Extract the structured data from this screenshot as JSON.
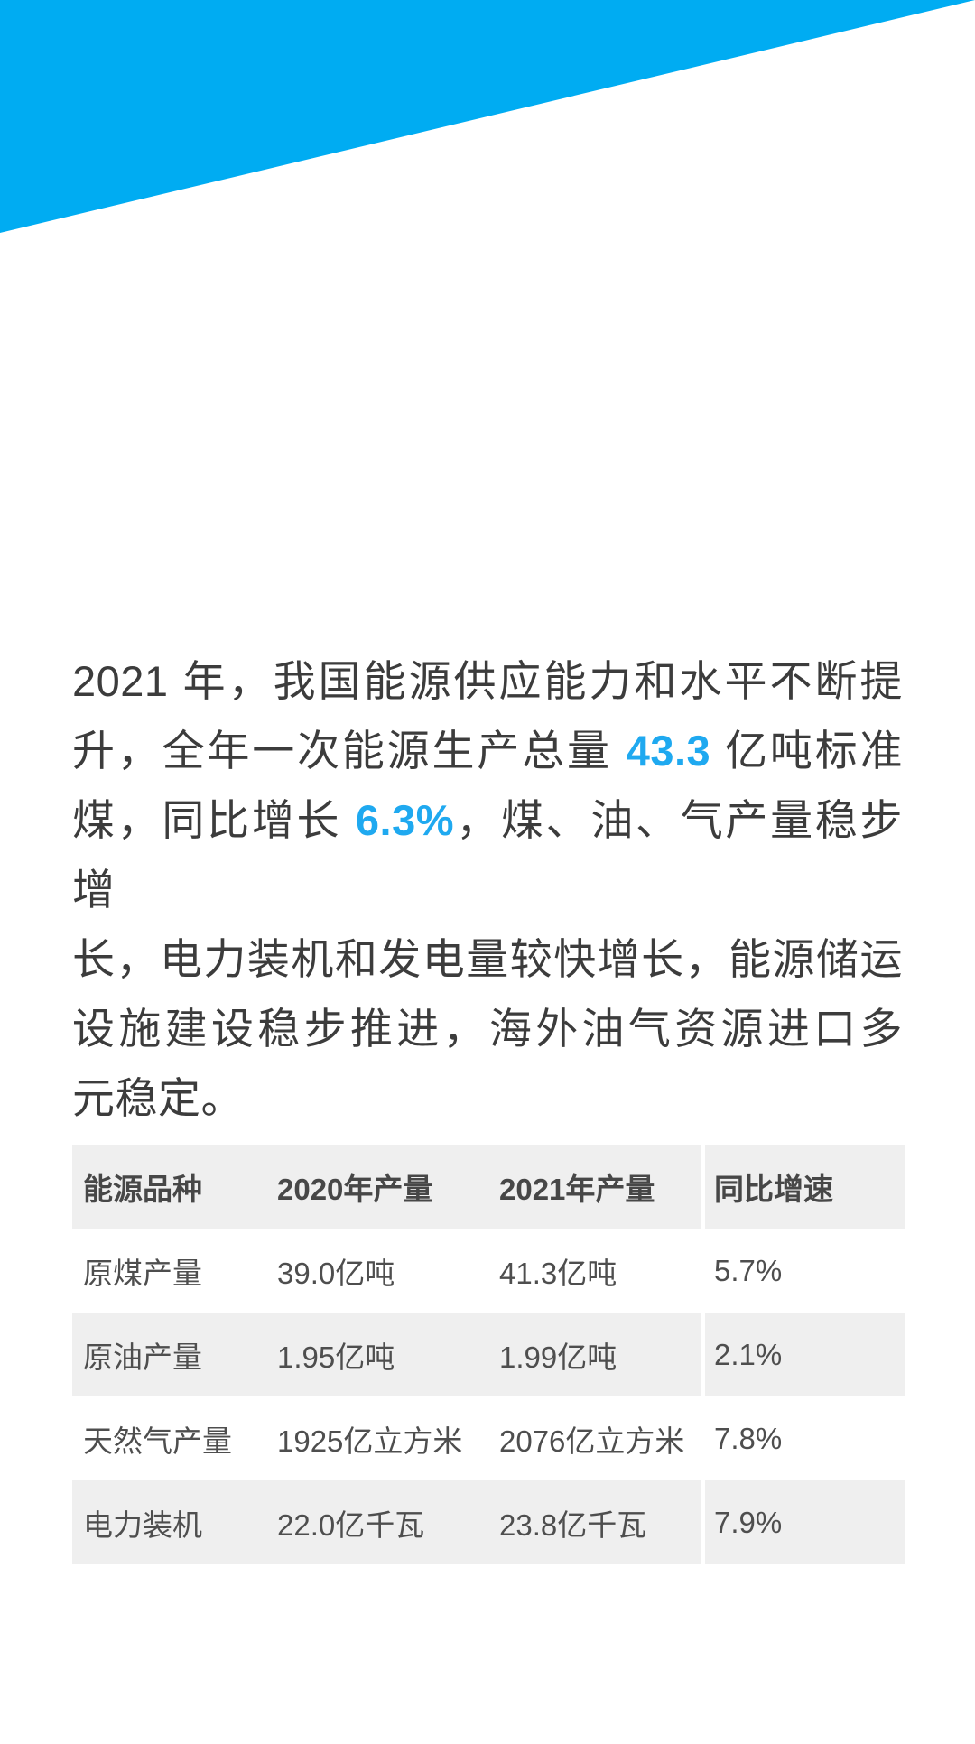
{
  "colors": {
    "accent_blue": "#00acf2",
    "highlight_blue": "#1fa9f0",
    "table_stripe_gray": "#efefef",
    "body_text": "#3c3c3c"
  },
  "hero": {
    "shape": "diagonal-triangle-banner"
  },
  "paragraph": {
    "lines": [
      [
        {
          "text": "2021 年，我国能源供应能力和水平不断提"
        }
      ],
      [
        {
          "text": "升，全年一次能源生产总量 "
        },
        {
          "text": "43.3",
          "highlight": true
        },
        {
          "text": " 亿吨标准"
        }
      ],
      [
        {
          "text": "煤，同比增长 "
        },
        {
          "text": "6.3%",
          "highlight": true
        },
        {
          "text": "，煤、油、气产量稳步增"
        }
      ],
      [
        {
          "text": "长，电力装机和发电量较快增长，能源储运"
        }
      ],
      [
        {
          "text": "设施建设稳步推进，海外油气资源进口多"
        }
      ],
      [
        {
          "text": "元稳定。"
        }
      ]
    ]
  },
  "table": {
    "headers": [
      "能源品种",
      "2020年产量",
      "2021年产量",
      "同比增速"
    ],
    "rows": [
      [
        "原煤产量",
        "39.0亿吨",
        "41.3亿吨",
        "5.7%"
      ],
      [
        "原油产量",
        "1.95亿吨",
        "1.99亿吨",
        "2.1%"
      ],
      [
        "天然气产量",
        "1925亿立方米",
        "2076亿立方米",
        "7.8%"
      ],
      [
        "电力装机",
        "22.0亿千瓦",
        "23.8亿千瓦",
        "7.9%"
      ]
    ]
  }
}
